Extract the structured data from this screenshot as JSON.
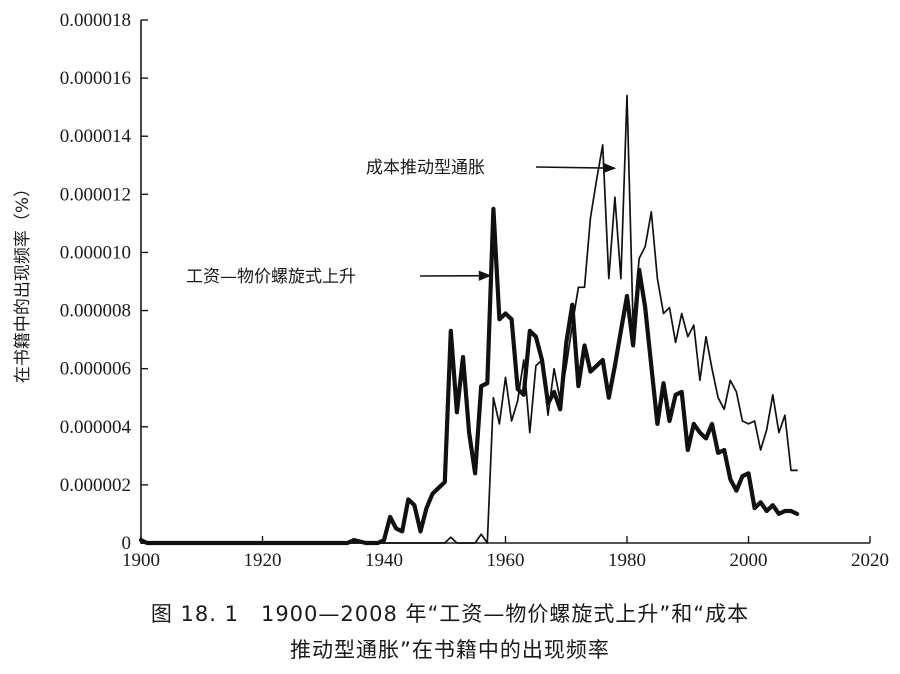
{
  "chart_data": {
    "type": "line",
    "xlim": [
      1900,
      2020
    ],
    "ylim": [
      0,
      1.8e-05
    ],
    "x_ticks": [
      "1900",
      "1920",
      "1940",
      "1960",
      "1980",
      "2000",
      "2020"
    ],
    "y_ticks": [
      "0",
      "0.000002",
      "0.000004",
      "0.000006",
      "0.000008",
      "0.000010",
      "0.000012",
      "0.000014",
      "0.000016",
      "0.000018"
    ],
    "ylabel": "在书籍中的出现频率（%）",
    "xlabel": "",
    "grid": false,
    "series": [
      {
        "name": "工资—物价螺旋式上升",
        "style": "thick",
        "x": [
          1900,
          1901,
          1905,
          1910,
          1920,
          1930,
          1934,
          1935,
          1936,
          1937,
          1938,
          1939,
          1940,
          1941,
          1942,
          1943,
          1944,
          1945,
          1946,
          1947,
          1948,
          1949,
          1950,
          1951,
          1952,
          1953,
          1954,
          1955,
          1956,
          1957,
          1958,
          1959,
          1960,
          1961,
          1962,
          1963,
          1964,
          1965,
          1966,
          1967,
          1968,
          1969,
          1970,
          1971,
          1972,
          1973,
          1974,
          1975,
          1976,
          1977,
          1978,
          1979,
          1980,
          1981,
          1982,
          1983,
          1984,
          1985,
          1986,
          1987,
          1988,
          1989,
          1990,
          1991,
          1992,
          1993,
          1994,
          1995,
          1996,
          1997,
          1998,
          1999,
          2000,
          2001,
          2002,
          2003,
          2004,
          2005,
          2006,
          2007,
          2008
        ],
        "values": [
          1e-07,
          0,
          0,
          0,
          0,
          0,
          0,
          1e-07,
          5e-08,
          0,
          0,
          0,
          1e-07,
          9e-07,
          5e-07,
          4e-07,
          1.5e-06,
          1.3e-06,
          4e-07,
          1.2e-06,
          1.7e-06,
          1.9e-06,
          2.1e-06,
          7.3e-06,
          4.5e-06,
          6.4e-06,
          3.8e-06,
          2.4e-06,
          5.4e-06,
          5.5e-06,
          1.15e-05,
          7.7e-06,
          7.9e-06,
          7.7e-06,
          5.3e-06,
          5.1e-06,
          7.3e-06,
          7.1e-06,
          6.3e-06,
          4.8e-06,
          5.2e-06,
          4.6e-06,
          6.9e-06,
          8.2e-06,
          5.4e-06,
          6.8e-06,
          5.9e-06,
          6.1e-06,
          6.3e-06,
          5e-06,
          6.1e-06,
          7.3e-06,
          8.5e-06,
          6.8e-06,
          9.4e-06,
          8.1e-06,
          6.1e-06,
          4.1e-06,
          5.5e-06,
          4.2e-06,
          5.1e-06,
          5.2e-06,
          3.2e-06,
          4.1e-06,
          3.8e-06,
          3.6e-06,
          4.1e-06,
          3.1e-06,
          3.2e-06,
          2.2e-06,
          1.8e-06,
          2.3e-06,
          2.4e-06,
          1.2e-06,
          1.4e-06,
          1.1e-06,
          1.3e-06,
          1e-06,
          1.1e-06,
          1.1e-06,
          1e-06
        ]
      },
      {
        "name": "成本推动型通胀",
        "style": "thin",
        "x": [
          1900,
          1940,
          1949,
          1950,
          1951,
          1952,
          1955,
          1956,
          1957,
          1958,
          1959,
          1960,
          1961,
          1962,
          1963,
          1964,
          1965,
          1966,
          1967,
          1968,
          1969,
          1970,
          1971,
          1972,
          1973,
          1974,
          1975,
          1976,
          1977,
          1978,
          1979,
          1980,
          1981,
          1982,
          1983,
          1984,
          1985,
          1986,
          1987,
          1988,
          1989,
          1990,
          1991,
          1992,
          1993,
          1994,
          1995,
          1996,
          1997,
          1998,
          1999,
          2000,
          2001,
          2002,
          2003,
          2004,
          2005,
          2006,
          2007,
          2008
        ],
        "values": [
          0,
          0,
          0,
          0,
          2e-07,
          0,
          0,
          3e-07,
          0,
          5e-06,
          4.1e-06,
          5.7e-06,
          4.2e-06,
          4.9e-06,
          6.3e-06,
          3.8e-06,
          6.1e-06,
          6.3e-06,
          4.4e-06,
          6e-06,
          4.9e-06,
          6.1e-06,
          7.5e-06,
          8.8e-06,
          8.8e-06,
          1.12e-05,
          1.25e-05,
          1.37e-05,
          9.1e-06,
          1.19e-05,
          9.1e-06,
          1.54e-05,
          7.5e-06,
          9.8e-06,
          1.02e-05,
          1.14e-05,
          9.1e-06,
          7.9e-06,
          8.1e-06,
          6.9e-06,
          7.9e-06,
          7.1e-06,
          7.5e-06,
          5.6e-06,
          7.1e-06,
          6e-06,
          5e-06,
          4.6e-06,
          5.6e-06,
          5.2e-06,
          4.2e-06,
          4.1e-06,
          4.2e-06,
          3.2e-06,
          3.9e-06,
          5.1e-06,
          3.8e-06,
          4.4e-06,
          2.5e-06,
          2.5e-06
        ]
      }
    ],
    "annotations": [
      {
        "text": "成本推动型通胀",
        "target": [
          1978,
          1.29e-05
        ]
      },
      {
        "text": "工资—物价螺旋式上升",
        "target": [
          1957.5,
          9.2e-06
        ]
      }
    ]
  },
  "caption": {
    "line1": "图 18. 1　1900—2008 年“工资—物价螺旋式上升”和“成本",
    "line2": "推动型通胀”在书籍中的出现频率"
  }
}
